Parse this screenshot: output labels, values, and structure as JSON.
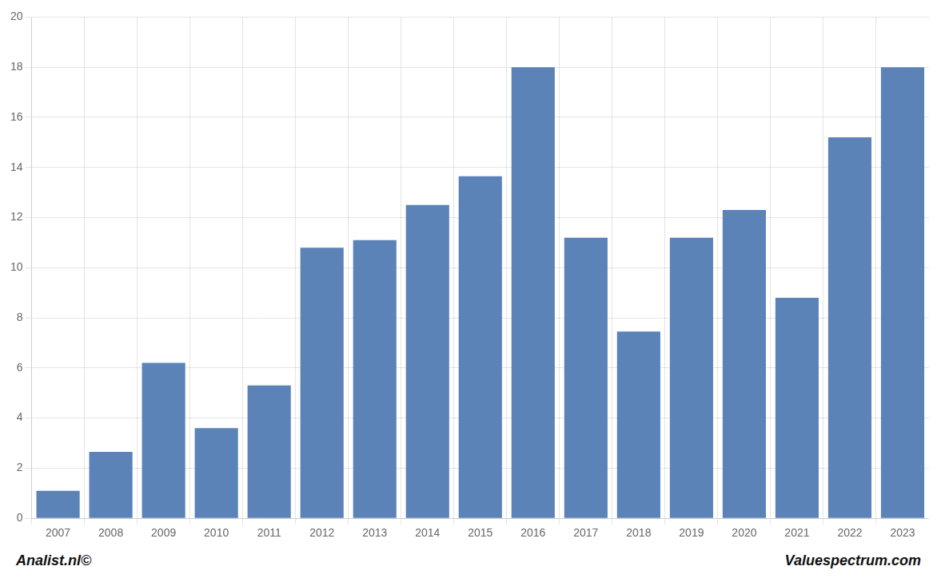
{
  "chart_data": {
    "type": "bar",
    "categories": [
      "2007",
      "2008",
      "2009",
      "2010",
      "2011",
      "2012",
      "2013",
      "2014",
      "2015",
      "2016",
      "2017",
      "2018",
      "2019",
      "2020",
      "2021",
      "2022",
      "2023"
    ],
    "values": [
      1.1,
      2.65,
      6.2,
      3.6,
      5.3,
      10.8,
      11.1,
      12.5,
      13.65,
      18.0,
      11.2,
      7.45,
      11.2,
      12.3,
      8.8,
      15.2,
      18.0
    ],
    "color": "#5b83b8",
    "ylim": [
      0,
      20
    ],
    "yticks": [
      0,
      2,
      4,
      6,
      8,
      10,
      12,
      14,
      16,
      18,
      20
    ],
    "grid": true,
    "annotations": [
      "Analist.nl©",
      "Valuespectrum.com"
    ]
  }
}
